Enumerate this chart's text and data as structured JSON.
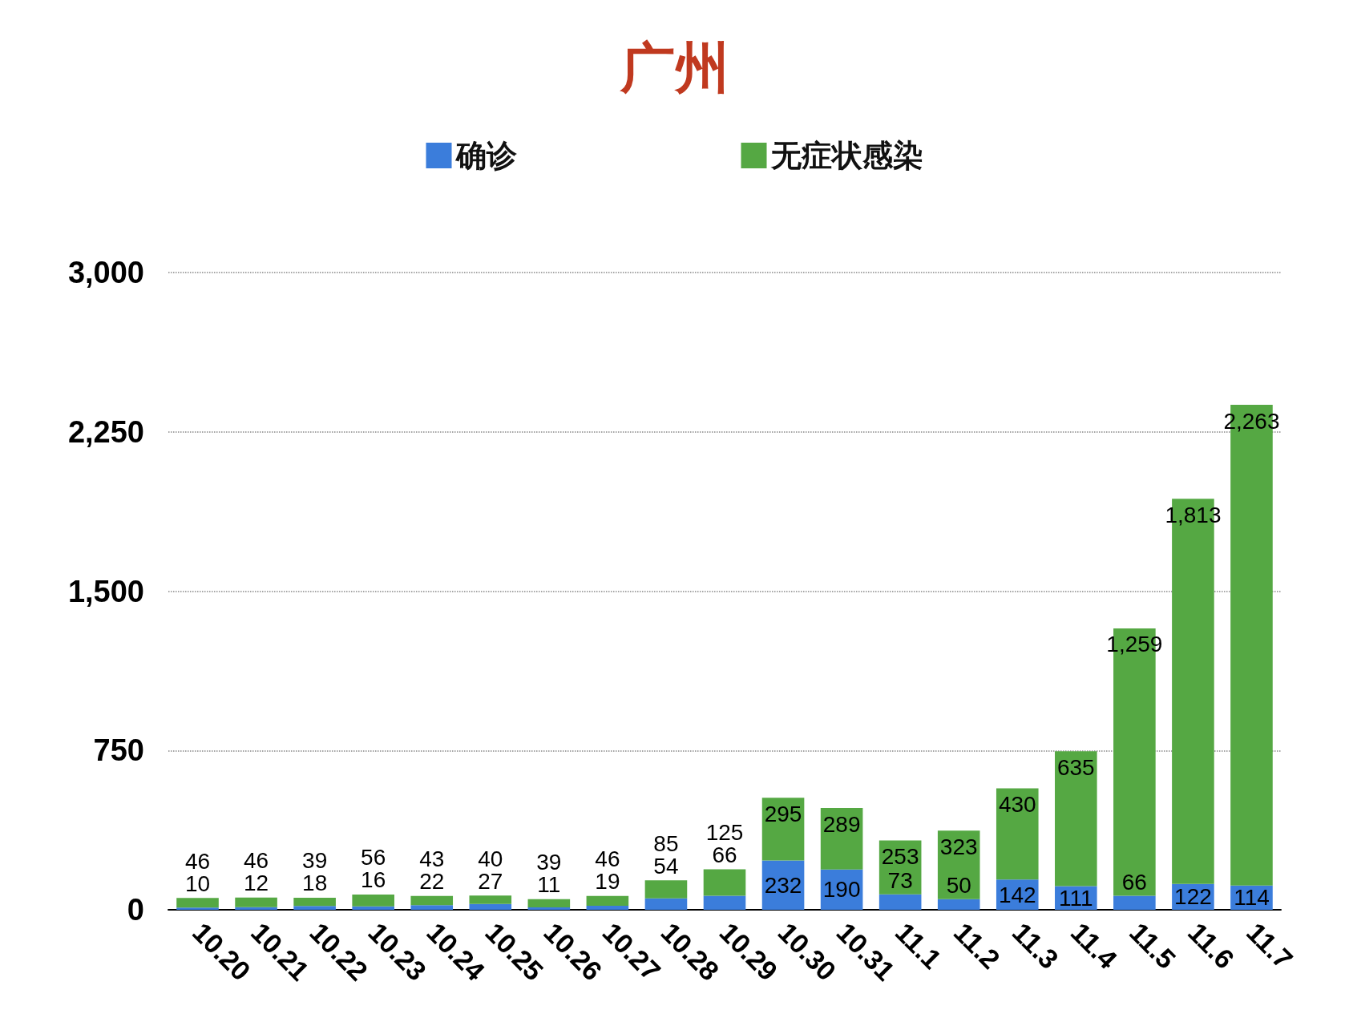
{
  "chart_data": {
    "type": "bar",
    "title": "广州",
    "stacked": true,
    "categories": [
      "10.20",
      "10.21",
      "10.22",
      "10.23",
      "10.24",
      "10.25",
      "10.26",
      "10.27",
      "10.28",
      "10.29",
      "10.30",
      "10.31",
      "11.1",
      "11.2",
      "11.3",
      "11.4",
      "11.5",
      "11.6",
      "11.7"
    ],
    "series": [
      {
        "name": "确诊",
        "color": "#3b7ddb",
        "values": [
          10,
          12,
          18,
          16,
          22,
          27,
          11,
          19,
          54,
          66,
          232,
          190,
          73,
          50,
          142,
          111,
          66,
          122,
          114
        ],
        "value_labels": [
          "10",
          "12",
          "18",
          "16",
          "22",
          "27",
          "11",
          "19",
          "54",
          "66",
          "232",
          "190",
          "73",
          "50",
          "142",
          "111",
          "66",
          "122",
          "114"
        ]
      },
      {
        "name": "无症状感染",
        "color": "#55a843",
        "values": [
          46,
          46,
          39,
          56,
          43,
          40,
          39,
          46,
          85,
          125,
          295,
          289,
          253,
          323,
          430,
          635,
          1259,
          1813,
          2263
        ],
        "value_labels": [
          "46",
          "46",
          "39",
          "56",
          "43",
          "40",
          "39",
          "46",
          "85",
          "125",
          "295",
          "289",
          "253",
          "323",
          "430",
          "635",
          "1,259",
          "1,813",
          "2,263"
        ]
      }
    ],
    "ylim": [
      0,
      3000
    ],
    "yticks": [
      0,
      750,
      {
        "value": 1500,
        "label": "1,500"
      },
      {
        "value": 2250,
        "label": "2,250"
      },
      {
        "value": 3000,
        "label": "3,000"
      }
    ],
    "grid": "y",
    "legend": "top"
  }
}
